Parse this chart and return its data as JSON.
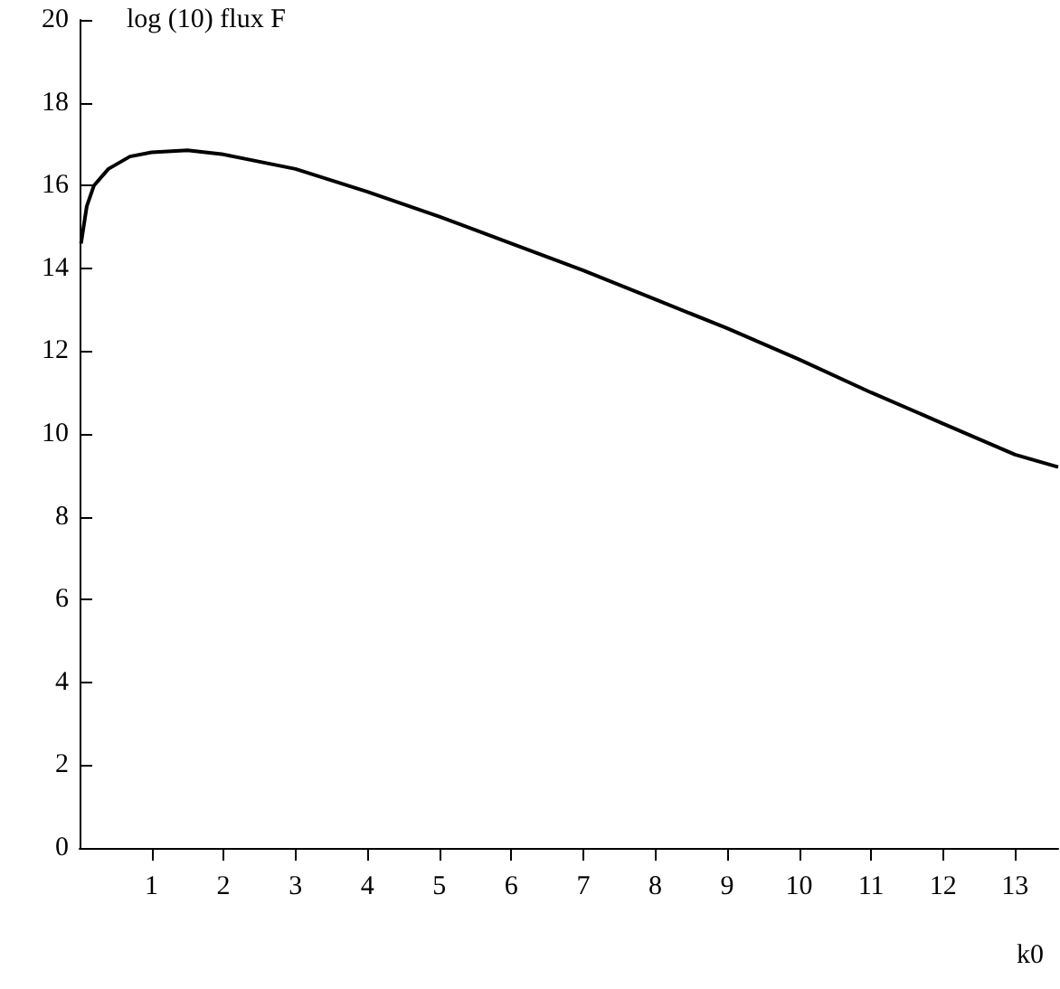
{
  "chart_data": {
    "type": "line",
    "xlabel": "k0",
    "ylabel": "log (10) flux F",
    "xlim": [
      0,
      13.6
    ],
    "xticks": [
      1,
      2,
      3,
      4,
      5,
      6,
      7,
      8,
      9,
      10,
      11,
      12,
      13
    ],
    "ylim": [
      0,
      20
    ],
    "yticks": [
      0,
      2,
      4,
      6,
      8,
      10,
      12,
      14,
      16,
      18,
      20
    ],
    "grid": false,
    "marker": "none",
    "line_style": "solid",
    "series": [
      {
        "color": "#000000",
        "x": [
          0.02,
          0.1,
          0.2,
          0.4,
          0.7,
          1,
          1.5,
          2,
          3,
          4,
          5,
          6,
          7,
          8,
          9,
          10,
          11,
          12,
          13,
          13.6
        ],
        "values": [
          14.6,
          15.5,
          16.0,
          16.4,
          16.7,
          16.8,
          16.85,
          16.75,
          16.4,
          15.85,
          15.25,
          14.6,
          13.95,
          13.25,
          12.55,
          11.8,
          11.0,
          10.25,
          9.5,
          9.2
        ]
      }
    ]
  }
}
